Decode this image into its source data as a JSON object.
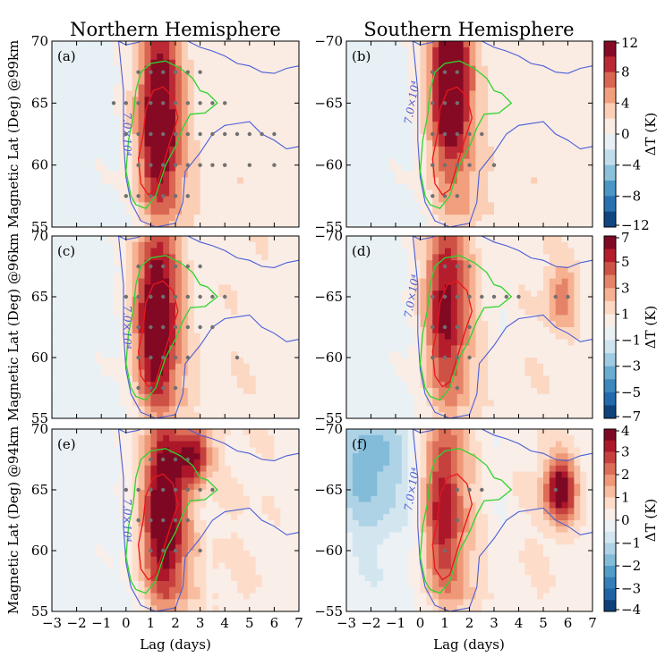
{
  "chart_data": {
    "type": "heatmap",
    "figure_columns": [
      "Northern Hemisphere",
      "Southern Hemisphere"
    ],
    "xlabel": "Lag (days)",
    "x_ticks": [
      -3,
      -2,
      -1,
      0,
      1,
      2,
      3,
      4,
      5,
      6,
      7
    ],
    "xlim": [
      -3,
      7
    ],
    "colorbar_label": "ΔT (K)",
    "contour_label": "7.0×10⁴",
    "rows": [
      {
        "ylabel": "Magnetic Lat (Deg) @99km",
        "colorbar_ticks": [
          "12",
          "8",
          "4",
          "0",
          "−4",
          "−8",
          "−12"
        ],
        "colorbar_range": [
          -12,
          12
        ],
        "colorbar_levels": 12
      },
      {
        "ylabel": "Magnetic Lat (Deg) @96km",
        "colorbar_ticks": [
          "7",
          "5",
          "3",
          "1",
          "−1",
          "−3",
          "−5",
          "−7"
        ],
        "colorbar_range": [
          -7,
          7
        ],
        "colorbar_levels": 14
      },
      {
        "ylabel": "Magnetic Lat (Deg) @94km",
        "colorbar_ticks": [
          "4",
          "3",
          "2",
          "1",
          "0",
          "−1",
          "−2",
          "−3",
          "−4"
        ],
        "colorbar_range": [
          -4,
          4
        ],
        "colorbar_levels": 16
      }
    ],
    "panels": [
      {
        "label": "(a)",
        "hemisphere": "north",
        "row": 0,
        "y_ticks": [
          "70",
          "65",
          "60",
          "55"
        ],
        "ylim": [
          55,
          70
        ],
        "peak": {
          "lag": 1.3,
          "lat": 63.5,
          "value": 12
        },
        "secondary": [],
        "significance_points": [
          [
            -0.5,
            65
          ],
          [
            0,
            65
          ],
          [
            0,
            62.5
          ],
          [
            0,
            57.5
          ],
          [
            0.5,
            67.5
          ],
          [
            0.5,
            65
          ],
          [
            0.5,
            62.5
          ],
          [
            0.5,
            60
          ],
          [
            0.5,
            57.5
          ],
          [
            1,
            67.5
          ],
          [
            1,
            65
          ],
          [
            1,
            62.5
          ],
          [
            1,
            60
          ],
          [
            1,
            57.5
          ],
          [
            1.5,
            67.5
          ],
          [
            1.5,
            65
          ],
          [
            1.5,
            62.5
          ],
          [
            1.5,
            60
          ],
          [
            1.5,
            57.5
          ],
          [
            2,
            67.5
          ],
          [
            2,
            65
          ],
          [
            2,
            62.5
          ],
          [
            2,
            60
          ],
          [
            2,
            57.5
          ],
          [
            2.5,
            67.5
          ],
          [
            2.5,
            65
          ],
          [
            2.5,
            62.5
          ],
          [
            2.5,
            60
          ],
          [
            2.5,
            57.5
          ],
          [
            3,
            67.5
          ],
          [
            3,
            65
          ],
          [
            3,
            62.5
          ],
          [
            3,
            60
          ],
          [
            3.5,
            65
          ],
          [
            3.5,
            62.5
          ],
          [
            3.5,
            60
          ],
          [
            4,
            65
          ],
          [
            4,
            62.5
          ],
          [
            4,
            60
          ],
          [
            4.5,
            62.5
          ],
          [
            5,
            62.5
          ],
          [
            5,
            60
          ],
          [
            5.5,
            62.5
          ],
          [
            6,
            62.5
          ],
          [
            6,
            60
          ]
        ]
      },
      {
        "label": "(b)",
        "hemisphere": "south",
        "row": 0,
        "y_ticks": [
          "−70",
          "−65",
          "−60",
          "−55"
        ],
        "ylim": [
          -55,
          -70
        ],
        "peak": {
          "lag": 1.2,
          "lat": -66.5,
          "value": 12
        },
        "secondary": [],
        "significance_points": [
          [
            0.5,
            -67.5
          ],
          [
            0.5,
            -65
          ],
          [
            0.5,
            -62.5
          ],
          [
            0.5,
            -60
          ],
          [
            0.5,
            -57.5
          ],
          [
            1,
            -67.5
          ],
          [
            1,
            -65
          ],
          [
            1,
            -62.5
          ],
          [
            1,
            -60
          ],
          [
            1,
            -57.5
          ],
          [
            1.5,
            -67.5
          ],
          [
            1.5,
            -65
          ],
          [
            1.5,
            -62.5
          ],
          [
            1.5,
            -60
          ],
          [
            1.5,
            -57.5
          ],
          [
            2,
            -62.5
          ],
          [
            2,
            -60
          ],
          [
            2.5,
            -62.5
          ],
          [
            3,
            -60
          ]
        ]
      },
      {
        "label": "(c)",
        "hemisphere": "north",
        "row": 1,
        "y_ticks": [
          "70",
          "65",
          "60",
          "55"
        ],
        "ylim": [
          55,
          70
        ],
        "peak": {
          "lag": 1.2,
          "lat": 63,
          "value": 7
        },
        "secondary": [],
        "significance_points": [
          [
            0,
            65
          ],
          [
            0.5,
            67.5
          ],
          [
            0.5,
            65
          ],
          [
            0.5,
            62.5
          ],
          [
            0.5,
            60
          ],
          [
            0.5,
            57.5
          ],
          [
            1,
            67.5
          ],
          [
            1,
            65
          ],
          [
            1,
            62.5
          ],
          [
            1,
            60
          ],
          [
            1,
            57.5
          ],
          [
            1.5,
            67.5
          ],
          [
            1.5,
            65
          ],
          [
            1.5,
            62.5
          ],
          [
            1.5,
            60
          ],
          [
            1.5,
            57.5
          ],
          [
            2,
            67.5
          ],
          [
            2,
            65
          ],
          [
            2,
            62.5
          ],
          [
            2,
            60
          ],
          [
            2,
            57.5
          ],
          [
            2.5,
            67.5
          ],
          [
            2.5,
            65
          ],
          [
            2.5,
            62.5
          ],
          [
            2.5,
            60
          ],
          [
            3,
            67.5
          ],
          [
            3,
            65
          ],
          [
            3,
            62.5
          ],
          [
            3.5,
            65
          ],
          [
            3.5,
            62.5
          ],
          [
            4,
            65
          ],
          [
            4.5,
            60
          ]
        ]
      },
      {
        "label": "(d)",
        "hemisphere": "south",
        "row": 1,
        "y_ticks": [
          "−70",
          "−65",
          "−60",
          "−55"
        ],
        "ylim": [
          -55,
          -70
        ],
        "peak": {
          "lag": 1.0,
          "lat": -64,
          "value": 5
        },
        "secondary": [
          {
            "lag": 5.8,
            "lat": -65,
            "value": 3
          }
        ],
        "significance_points": [
          [
            0.5,
            -65
          ],
          [
            0.5,
            -62.5
          ],
          [
            0.5,
            -60
          ],
          [
            1,
            -67.5
          ],
          [
            1,
            -65
          ],
          [
            1,
            -62.5
          ],
          [
            1,
            -60
          ],
          [
            1.5,
            -67.5
          ],
          [
            1.5,
            -65
          ],
          [
            1.5,
            -62.5
          ],
          [
            1.5,
            -60
          ],
          [
            1.5,
            -57.5
          ],
          [
            2,
            -67.5
          ],
          [
            2,
            -65
          ],
          [
            2,
            -62.5
          ],
          [
            2,
            -60
          ],
          [
            2.5,
            -65
          ],
          [
            3,
            -65
          ],
          [
            3.5,
            -65
          ],
          [
            4,
            -65
          ],
          [
            5.5,
            -65
          ],
          [
            6,
            -65
          ]
        ]
      },
      {
        "label": "(e)",
        "hemisphere": "north",
        "row": 2,
        "y_ticks": [
          "70",
          "65",
          "60",
          "55"
        ],
        "ylim": [
          55,
          70
        ],
        "peak": {
          "lag": 1.5,
          "lat": 63,
          "value": 4
        },
        "secondary": [
          {
            "lag": 2.8,
            "lat": 68,
            "value": 3
          }
        ],
        "significance_points": [
          [
            0,
            65
          ],
          [
            0.5,
            65
          ],
          [
            0.5,
            62.5
          ],
          [
            1,
            67.5
          ],
          [
            1,
            65
          ],
          [
            1,
            62.5
          ],
          [
            1,
            60
          ],
          [
            1.5,
            67.5
          ],
          [
            1.5,
            65
          ],
          [
            1.5,
            62.5
          ],
          [
            1.5,
            60
          ],
          [
            2,
            67.5
          ],
          [
            2,
            65
          ],
          [
            2,
            62.5
          ],
          [
            2,
            60
          ],
          [
            2.5,
            67.5
          ],
          [
            2.5,
            65
          ],
          [
            2.5,
            62.5
          ],
          [
            3,
            65
          ],
          [
            3,
            60
          ],
          [
            3.5,
            65
          ]
        ]
      },
      {
        "label": "(f)",
        "hemisphere": "south",
        "row": 2,
        "y_ticks": [
          "−70",
          "−65",
          "−60",
          "−55"
        ],
        "ylim": [
          -55,
          -70
        ],
        "peak": {
          "lag": 0.9,
          "lat": -63.5,
          "value": 2.5
        },
        "secondary": [
          {
            "lag": 5.7,
            "lat": -65,
            "value": 4
          }
        ],
        "negative": [
          {
            "lag": -2,
            "lat": -67,
            "value": -1.5
          }
        ],
        "significance_points": [
          [
            1,
            -60
          ],
          [
            1.5,
            -65
          ],
          [
            1.5,
            -62.5
          ],
          [
            2,
            -65
          ],
          [
            2.5,
            -65
          ],
          [
            5.5,
            -65
          ]
        ]
      }
    ],
    "green_contour": [
      [
        0.2,
        57.5
      ],
      [
        0.0,
        59.5
      ],
      [
        0.1,
        62
      ],
      [
        0.3,
        64
      ],
      [
        0.4,
        66
      ],
      [
        0.6,
        67.5
      ],
      [
        1.0,
        68.2
      ],
      [
        1.6,
        68.4
      ],
      [
        2.2,
        67.8
      ],
      [
        2.7,
        67.0
      ],
      [
        3.0,
        66.0
      ],
      [
        3.3,
        65.8
      ],
      [
        3.7,
        65.0
      ],
      [
        3.2,
        64.2
      ],
      [
        2.6,
        64.1
      ],
      [
        2.3,
        63.0
      ],
      [
        2.0,
        61.5
      ],
      [
        1.6,
        60.0
      ],
      [
        1.2,
        57.5
      ],
      [
        0.8,
        56.5
      ],
      [
        0.4,
        56.8
      ],
      [
        0.2,
        57.5
      ]
    ],
    "red_contour": [
      [
        0.6,
        58.5
      ],
      [
        0.5,
        60.5
      ],
      [
        0.7,
        62.5
      ],
      [
        0.8,
        64.5
      ],
      [
        1.1,
        66.0
      ],
      [
        1.5,
        66.3
      ],
      [
        1.9,
        65.5
      ],
      [
        2.1,
        63.8
      ],
      [
        1.8,
        62.0
      ],
      [
        1.5,
        60.0
      ],
      [
        1.2,
        58.0
      ],
      [
        0.9,
        57.6
      ],
      [
        0.6,
        58.5
      ]
    ],
    "blue_contour_upper": [
      [
        -0.3,
        70
      ],
      [
        0.0,
        69.7
      ],
      [
        0.5,
        69.9
      ],
      [
        1.0,
        70.5
      ],
      [
        1.8,
        71.0
      ],
      [
        2.5,
        70.0
      ],
      [
        3.0,
        69.5
      ],
      [
        3.5,
        69.2
      ],
      [
        4.0,
        68.8
      ],
      [
        4.5,
        68.2
      ],
      [
        5.0,
        68.0
      ],
      [
        5.5,
        67.5
      ],
      [
        6.0,
        67.4
      ],
      [
        6.5,
        67.8
      ],
      [
        7,
        68.0
      ]
    ],
    "blue_contour_lower": [
      [
        -0.3,
        70
      ],
      [
        -0.1,
        66.0
      ],
      [
        -0.1,
        62.0
      ],
      [
        0.0,
        59.0
      ],
      [
        0.2,
        57.0
      ],
      [
        0.6,
        55.5
      ],
      [
        1.2,
        55.0
      ],
      [
        2.0,
        55.3
      ],
      [
        2.3,
        57.0
      ],
      [
        2.4,
        59.5
      ],
      [
        3.0,
        61.0
      ],
      [
        3.5,
        62.5
      ],
      [
        4.0,
        63.2
      ],
      [
        5.0,
        63.5
      ],
      [
        5.5,
        62.5
      ],
      [
        6.0,
        62.0
      ],
      [
        6.5,
        61.3
      ],
      [
        7,
        61.5
      ]
    ]
  }
}
